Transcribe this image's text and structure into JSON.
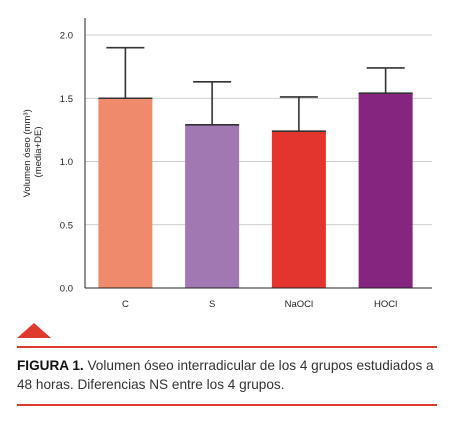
{
  "chart_data": {
    "type": "bar",
    "categories": [
      "C",
      "S",
      "NaOCl",
      "HOCl"
    ],
    "values": [
      1.5,
      1.29,
      1.24,
      1.54
    ],
    "errors": [
      0.4,
      0.34,
      0.27,
      0.2
    ],
    "colors": [
      "#f08a6c",
      "#a278b2",
      "#e3342d",
      "#862580"
    ],
    "ylabel_line1": "Volumen óseo (mm³)",
    "ylabel_line2": "(media+DE)",
    "ylim": [
      0,
      2.0
    ],
    "yticks": [
      "0.0",
      "0.5",
      "1.0",
      "1.5",
      "2.0"
    ],
    "grid": true
  },
  "caption": {
    "lead": "FIGURA 1.",
    "text": " Volumen óseo interradicular de los 4 grupos estudiados a 48 horas. Diferencias NS entre los 4 grupos."
  },
  "accent_color": "#e03a2f"
}
